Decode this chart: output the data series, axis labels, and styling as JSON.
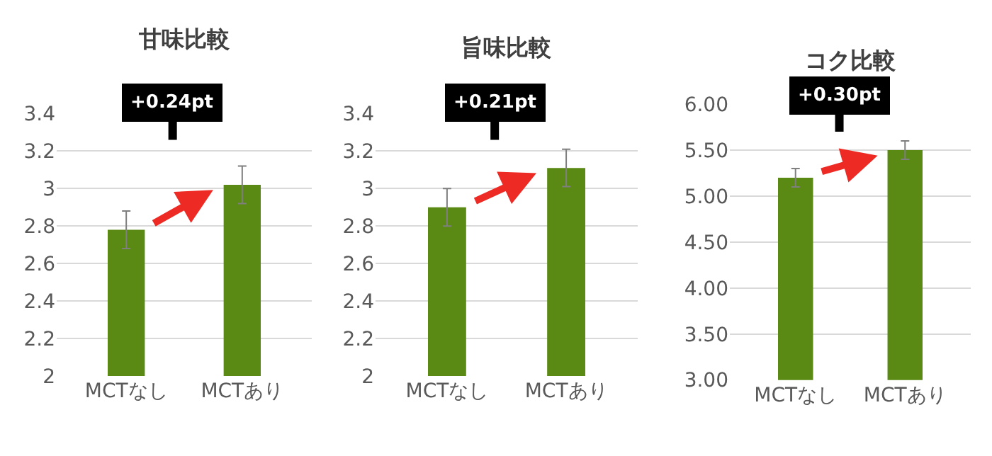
{
  "chart_data": [
    {
      "type": "bar",
      "title": "甘味比較",
      "categories": [
        "MCTなし",
        "MCTあり"
      ],
      "values": [
        2.78,
        3.02
      ],
      "errors": [
        0.1,
        0.1
      ],
      "color": "#5a8a14",
      "ylim": [
        2,
        3.4
      ],
      "yticks": [
        2,
        2.2,
        2.4,
        2.6,
        2.8,
        3,
        3.2,
        3.4
      ],
      "grid": "y",
      "annotations": [
        "+0.24pt"
      ]
    },
    {
      "type": "bar",
      "title": "旨味比較",
      "categories": [
        "MCTなし",
        "MCTあり"
      ],
      "values": [
        2.9,
        3.11
      ],
      "errors": [
        0.1,
        0.1
      ],
      "color": "#5a8a14",
      "ylim": [
        2,
        3.4
      ],
      "yticks": [
        2,
        2.2,
        2.4,
        2.6,
        2.8,
        3,
        3.2,
        3.4
      ],
      "grid": "y",
      "annotations": [
        "+0.21pt"
      ]
    },
    {
      "type": "bar",
      "title": "コク比較",
      "categories": [
        "MCTなし",
        "MCTあり"
      ],
      "values": [
        5.2,
        5.5
      ],
      "errors": [
        0.1,
        0.1
      ],
      "color": "#5a8a14",
      "ylim": [
        3,
        6
      ],
      "yticks": [
        {
          "value": 3,
          "label": "3.00"
        },
        {
          "value": 3.5,
          "label": "3.50"
        },
        {
          "value": 4,
          "label": "4.00"
        },
        {
          "value": 4.5,
          "label": "4.50"
        },
        {
          "value": 5,
          "label": "5.00"
        },
        {
          "value": 5.5,
          "label": "5.50"
        },
        {
          "value": 6,
          "label": "6.00"
        }
      ],
      "grid": "y",
      "annotations": [
        "+0.30pt"
      ]
    }
  ]
}
